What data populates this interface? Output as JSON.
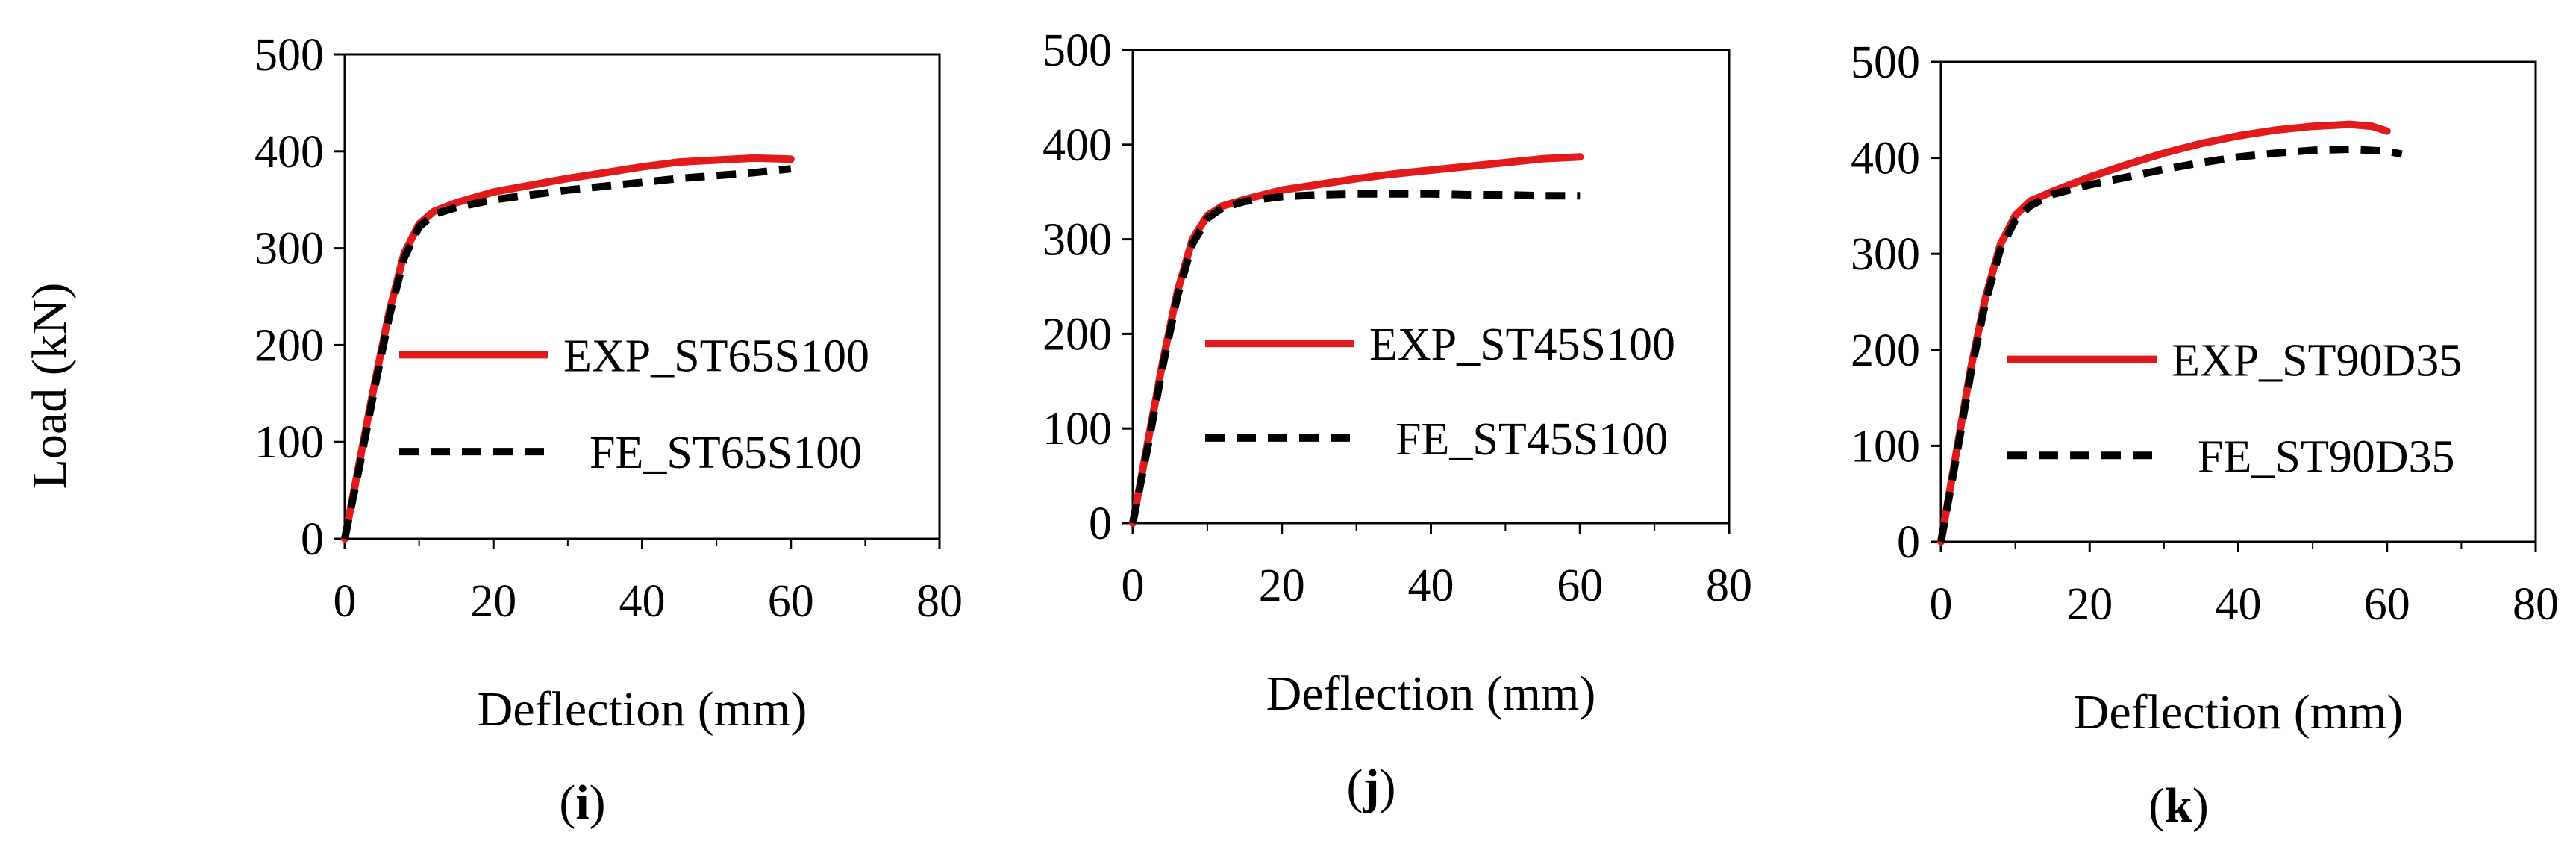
{
  "figure": {
    "ylabel": "Load (kN)"
  },
  "colors": {
    "exp": "#e31a1c",
    "fe": "#000000",
    "axis": "#000000"
  },
  "chart_data": [
    {
      "type": "line",
      "panel": "i",
      "caption": {
        "open": "(",
        "letter": "i",
        "close": ")"
      },
      "xlabel": "Deflection (mm)",
      "ylabel": "Load (kN)",
      "xlim": [
        0,
        80
      ],
      "ylim": [
        0,
        500
      ],
      "xticks": [
        "0",
        "20",
        "40",
        "60",
        "80"
      ],
      "yticks": [
        "0",
        "100",
        "200",
        "300",
        "400",
        "500"
      ],
      "legend": "center-right",
      "series": [
        {
          "name": "EXP_ST65S100",
          "style": "solid",
          "x": [
            0,
            2,
            4,
            6,
            8,
            10,
            12,
            15,
            20,
            25,
            30,
            35,
            40,
            45,
            50,
            55,
            60
          ],
          "y": [
            0,
            80,
            160,
            235,
            295,
            325,
            338,
            347,
            358,
            365,
            372,
            378,
            384,
            389,
            391,
            393,
            392
          ]
        },
        {
          "name": "FE_ST65S100",
          "style": "dashed",
          "x": [
            0,
            2,
            4,
            6,
            8,
            10,
            12,
            15,
            20,
            25,
            30,
            35,
            40,
            45,
            50,
            55,
            60
          ],
          "y": [
            0,
            75,
            155,
            230,
            290,
            322,
            335,
            342,
            350,
            355,
            360,
            364,
            368,
            372,
            375,
            378,
            382
          ]
        }
      ]
    },
    {
      "type": "line",
      "panel": "j",
      "caption": {
        "open": "(",
        "letter": "j",
        "close": ")"
      },
      "xlabel": "Deflection (mm)",
      "ylabel": "Load (kN)",
      "xlim": [
        0,
        80
      ],
      "ylim": [
        0,
        500
      ],
      "xticks": [
        "0",
        "20",
        "40",
        "60",
        "80"
      ],
      "yticks": [
        "0",
        "100",
        "200",
        "300",
        "400",
        "500"
      ],
      "legend": "center-right",
      "series": [
        {
          "name": "EXP_ST45S100",
          "style": "solid",
          "x": [
            0,
            2,
            4,
            6,
            8,
            10,
            12,
            15,
            20,
            25,
            30,
            35,
            40,
            45,
            50,
            55,
            60
          ],
          "y": [
            0,
            85,
            170,
            245,
            300,
            325,
            335,
            342,
            352,
            358,
            364,
            369,
            373,
            377,
            381,
            385,
            387
          ]
        },
        {
          "name": "FE_ST45S100",
          "style": "dashed",
          "x": [
            0,
            2,
            4,
            6,
            8,
            10,
            12,
            15,
            20,
            25,
            30,
            35,
            40,
            45,
            50,
            55,
            60
          ],
          "y": [
            0,
            80,
            165,
            240,
            295,
            322,
            333,
            340,
            345,
            347,
            348,
            348,
            348,
            347,
            347,
            346,
            346
          ]
        }
      ]
    },
    {
      "type": "line",
      "panel": "k",
      "caption": {
        "open": "(",
        "letter": "k",
        "close": ")"
      },
      "xlabel": "Deflection (mm)",
      "ylabel": "Load (kN)",
      "xlim": [
        0,
        80
      ],
      "ylim": [
        0,
        500
      ],
      "xticks": [
        "0",
        "20",
        "40",
        "60",
        "80"
      ],
      "yticks": [
        "0",
        "100",
        "200",
        "300",
        "400",
        "500"
      ],
      "legend": "center-right",
      "series": [
        {
          "name": "EXP_ST90D35",
          "style": "solid",
          "x": [
            0,
            2,
            4,
            6,
            8,
            10,
            12,
            15,
            20,
            25,
            30,
            35,
            40,
            45,
            50,
            55,
            58,
            60
          ],
          "y": [
            0,
            90,
            180,
            255,
            310,
            340,
            355,
            365,
            380,
            393,
            405,
            415,
            423,
            429,
            433,
            435,
            433,
            428
          ]
        },
        {
          "name": "FE_ST90D35",
          "style": "dashed",
          "x": [
            0,
            2,
            4,
            6,
            8,
            10,
            12,
            15,
            20,
            25,
            30,
            35,
            40,
            45,
            50,
            55,
            60,
            62
          ],
          "y": [
            0,
            85,
            175,
            250,
            305,
            335,
            350,
            362,
            372,
            380,
            388,
            395,
            401,
            405,
            408,
            409,
            407,
            404
          ]
        }
      ]
    }
  ]
}
